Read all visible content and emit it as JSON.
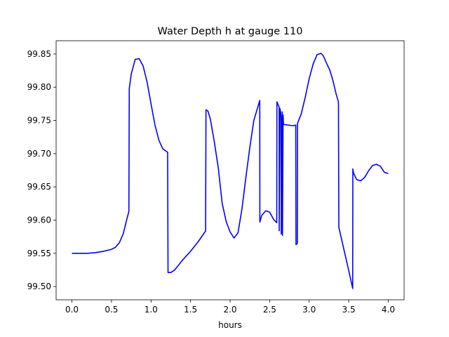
{
  "chart_data": {
    "type": "line",
    "title": "Water Depth h at gauge 110",
    "xlabel": "hours",
    "ylabel": "",
    "xlim": [
      -0.2,
      4.2
    ],
    "ylim": [
      99.48,
      99.87
    ],
    "xticks": [
      0.0,
      0.5,
      1.0,
      1.5,
      2.0,
      2.5,
      3.0,
      3.5,
      4.0
    ],
    "xtick_labels": [
      "0.0",
      "0.5",
      "1.0",
      "1.5",
      "2.0",
      "2.5",
      "3.0",
      "3.5",
      "4.0"
    ],
    "yticks": [
      99.5,
      99.55,
      99.6,
      99.65,
      99.7,
      99.75,
      99.8,
      99.85
    ],
    "ytick_labels": [
      "99.50",
      "99.55",
      "99.60",
      "99.65",
      "99.70",
      "99.75",
      "99.80",
      "99.85"
    ],
    "grid": false,
    "line_color": "#0000ff",
    "series": [
      {
        "x": [
          0.0,
          0.2,
          0.3,
          0.4,
          0.5,
          0.55,
          0.6,
          0.65,
          0.7,
          0.72,
          0.725,
          0.75,
          0.8,
          0.85,
          0.9,
          0.95,
          1.0,
          1.05,
          1.1,
          1.15,
          1.2,
          1.21,
          1.215,
          1.25,
          1.3,
          1.4,
          1.5,
          1.6,
          1.68,
          1.69,
          1.695,
          1.72,
          1.75,
          1.8,
          1.85,
          1.9,
          1.95,
          2.0,
          2.05,
          2.1,
          2.15,
          2.2,
          2.25,
          2.3,
          2.35,
          2.375,
          2.376,
          2.4,
          2.45,
          2.5,
          2.55,
          2.59,
          2.592,
          2.62,
          2.621,
          2.63,
          2.64,
          2.645,
          2.646,
          2.66,
          2.662,
          2.67,
          2.675,
          2.8,
          2.83,
          2.833,
          2.85,
          2.852,
          2.86,
          2.9,
          2.95,
          3.0,
          3.05,
          3.1,
          3.15,
          3.18,
          3.22,
          3.26,
          3.3,
          3.34,
          3.37,
          3.375,
          3.4,
          3.45,
          3.5,
          3.55,
          3.552,
          3.56,
          3.6,
          3.65,
          3.7,
          3.75,
          3.8,
          3.85,
          3.9,
          3.95,
          4.0
        ],
        "y": [
          99.55,
          99.55,
          99.551,
          99.553,
          99.556,
          99.559,
          99.566,
          99.58,
          99.604,
          99.613,
          99.798,
          99.82,
          99.842,
          99.843,
          99.832,
          99.808,
          99.775,
          99.743,
          99.72,
          99.707,
          99.703,
          99.702,
          99.521,
          99.521,
          99.525,
          99.54,
          99.553,
          99.568,
          99.582,
          99.583,
          99.766,
          99.764,
          99.752,
          99.718,
          99.679,
          99.625,
          99.598,
          99.582,
          99.573,
          99.581,
          99.617,
          99.665,
          99.71,
          99.75,
          99.77,
          99.78,
          99.597,
          99.607,
          99.614,
          99.612,
          99.601,
          99.596,
          99.778,
          99.77,
          99.584,
          99.768,
          99.762,
          99.755,
          99.579,
          99.763,
          99.577,
          99.758,
          99.744,
          99.742,
          99.743,
          99.563,
          99.565,
          99.745,
          99.748,
          99.76,
          99.785,
          99.813,
          99.835,
          99.849,
          99.851,
          99.847,
          99.836,
          99.826,
          99.81,
          99.79,
          99.778,
          99.589,
          99.576,
          99.55,
          99.524,
          99.497,
          99.677,
          99.671,
          99.661,
          99.659,
          99.664,
          99.674,
          99.682,
          99.684,
          99.681,
          99.672,
          99.67
        ]
      }
    ]
  }
}
